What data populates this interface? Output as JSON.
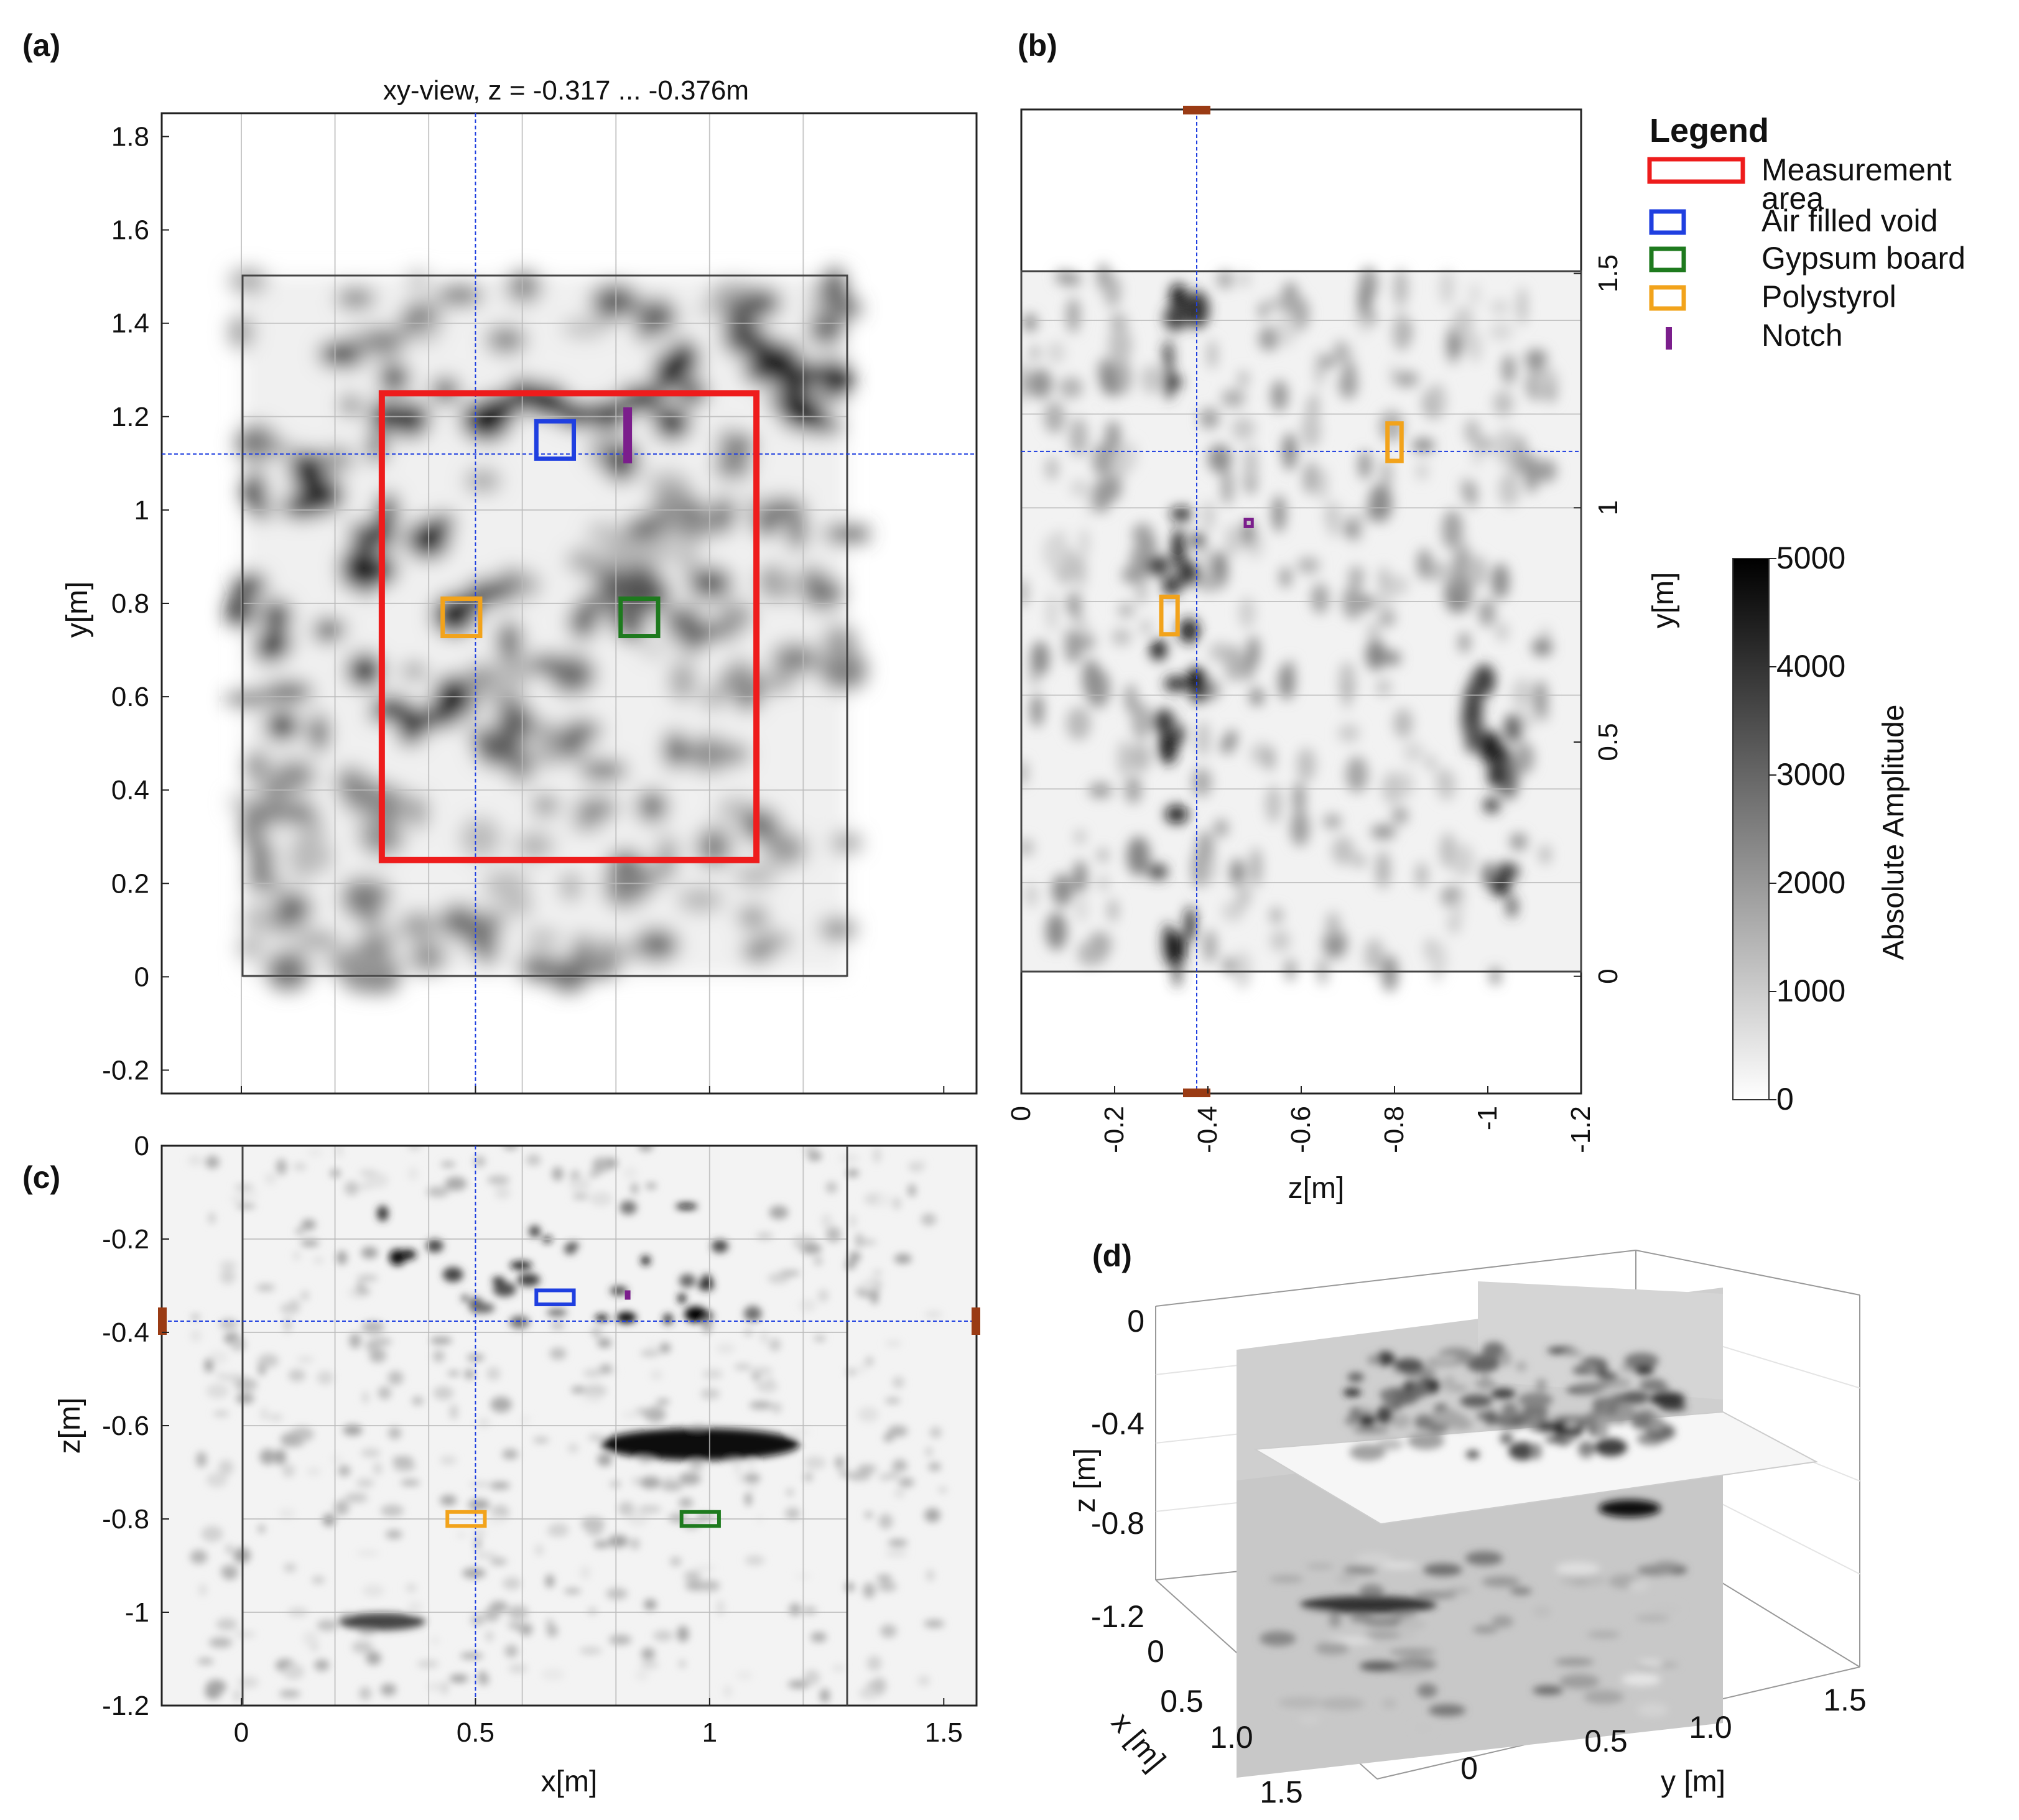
{
  "panels": {
    "a": {
      "label": "(a)",
      "title": "xy-view, z =  -0.317 ... -0.376m",
      "ylabel": "y[m]",
      "yticks": [
        "1.8",
        "1.6",
        "1.4",
        "1.2",
        "1",
        "0.8",
        "0.6",
        "0.4",
        "0.2",
        "0",
        "-0.2"
      ]
    },
    "b": {
      "label": "(b)",
      "xlabel": "z[m]",
      "ylabel": "y[m]",
      "xticks": [
        "0",
        "-0.2",
        "-0.4",
        "-0.6",
        "-0.8",
        "-1",
        "-1.2"
      ],
      "yticks": [
        "1.5",
        "1",
        "0.5",
        "0"
      ]
    },
    "c": {
      "label": "(c)",
      "xlabel": "x[m]",
      "ylabel": "z[m]",
      "xticks": [
        "0",
        "0.5",
        "1",
        "1.5"
      ],
      "yticks": [
        "0",
        "-0.2",
        "-0.4",
        "-0.6",
        "-0.8",
        "-1",
        "-1.2"
      ]
    },
    "d": {
      "label": "(d)",
      "zlabel": "z [m]",
      "xlabel": "x [m]",
      "ylabel": "y [m]",
      "zticks": [
        "0",
        "-0.4",
        "-0.8",
        "-1.2"
      ],
      "xticks": [
        "0",
        "0.5",
        "1.0",
        "1.5"
      ],
      "yticks": [
        "0",
        "0.5",
        "1.0",
        "1.5"
      ]
    }
  },
  "legend": {
    "title": "Legend",
    "items": [
      {
        "line1": "Measurement",
        "line2": "area",
        "color": "#ee1c1c",
        "kind": "box"
      },
      {
        "line1": "Air filled void",
        "line2": "",
        "color": "#1f3fe0",
        "kind": "box"
      },
      {
        "line1": "Gypsum board",
        "line2": "",
        "color": "#1e7a1e",
        "kind": "box"
      },
      {
        "line1": "Polystyrol",
        "line2": "",
        "color": "#f2a31b",
        "kind": "box"
      },
      {
        "line1": "Notch",
        "line2": "",
        "color": "#7b1e8c",
        "kind": "bar"
      }
    ]
  },
  "colorbar": {
    "label": "Absolute Amplitude",
    "ticks": [
      "5000",
      "4000",
      "3000",
      "2000",
      "1000",
      "0"
    ],
    "min": 0,
    "max": 5000
  },
  "chart_data": [
    {
      "type": "heatmap",
      "panel": "a",
      "title": "xy-view, z =  -0.317 ... -0.376m",
      "xlabel": "",
      "ylabel": "y[m]",
      "xlim": [
        -0.17,
        1.57
      ],
      "ylim": [
        -0.25,
        1.85
      ],
      "cursor": {
        "x": 0.5,
        "y": 1.12
      },
      "boxes": [
        {
          "name": "Measurement area",
          "x": [
            0.3,
            1.1
          ],
          "y": [
            0.25,
            1.25
          ],
          "color": "#ee1c1c"
        },
        {
          "name": "Air filled void",
          "x": [
            0.63,
            0.71
          ],
          "y": [
            1.11,
            1.19
          ],
          "color": "#1f3fe0"
        },
        {
          "name": "Polystyrol",
          "x": [
            0.43,
            0.51
          ],
          "y": [
            0.73,
            0.81
          ],
          "color": "#f2a31b"
        },
        {
          "name": "Gypsum board",
          "x": [
            0.81,
            0.89
          ],
          "y": [
            0.73,
            0.81
          ],
          "color": "#1e7a1e"
        },
        {
          "name": "Notch",
          "x": [
            0.825,
            0.825
          ],
          "y": [
            1.1,
            1.22
          ],
          "color": "#7b1e8c"
        }
      ]
    },
    {
      "type": "heatmap",
      "panel": "b",
      "xlabel": "z[m]",
      "ylabel": "y[m]",
      "xlim": [
        0,
        -1.2
      ],
      "ylim": [
        -0.25,
        1.85
      ],
      "cursor": {
        "x": -0.376,
        "y": 1.12
      },
      "boxes": [
        {
          "name": "Polystyrol",
          "x": [
            -0.785,
            -0.815
          ],
          "y": [
            1.1,
            1.18
          ],
          "color": "#f2a31b"
        },
        {
          "name": "Polystyrol",
          "x": [
            -0.3,
            -0.335
          ],
          "y": [
            0.73,
            0.81
          ],
          "color": "#f2a31b"
        },
        {
          "name": "Notch",
          "x": [
            -0.48,
            -0.495
          ],
          "y": [
            0.96,
            0.975
          ],
          "color": "#7b1e8c"
        }
      ]
    },
    {
      "type": "heatmap",
      "panel": "c",
      "xlabel": "x[m]",
      "ylabel": "z[m]",
      "xlim": [
        -0.17,
        1.57
      ],
      "ylim": [
        -1.2,
        0
      ],
      "cursor": {
        "x": 0.5,
        "y": -0.376
      },
      "boxes": [
        {
          "name": "Air filled void",
          "x": [
            0.63,
            0.71
          ],
          "y": [
            -0.31,
            -0.34
          ],
          "color": "#1f3fe0"
        },
        {
          "name": "Polystyrol",
          "x": [
            0.44,
            0.52
          ],
          "y": [
            -0.785,
            -0.815
          ],
          "color": "#f2a31b"
        },
        {
          "name": "Gypsum board",
          "x": [
            0.94,
            1.02
          ],
          "y": [
            -0.785,
            -0.815
          ],
          "color": "#1e7a1e"
        },
        {
          "name": "Notch",
          "x": [
            0.825,
            0.825
          ],
          "y": [
            -0.31,
            -0.33
          ],
          "color": "#7b1e8c"
        }
      ]
    },
    {
      "type": "heatmap",
      "panel": "d",
      "xlabel": "x [m]",
      "ylabel": "y [m]",
      "zlabel": "z [m]"
    }
  ]
}
